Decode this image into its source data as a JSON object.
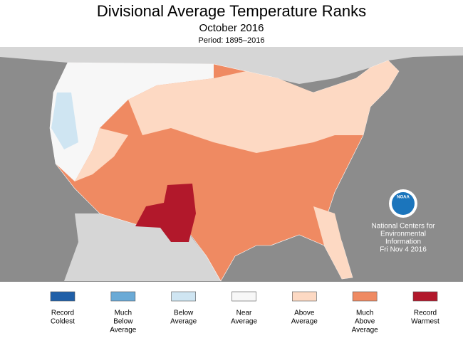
{
  "header": {
    "title": "Divisional Average Temperature Ranks",
    "subtitle": "October 2016",
    "period": "Period: 1895–2016"
  },
  "legend": [
    {
      "lines": [
        "Record",
        "Coldest"
      ],
      "color": "#1f5fa8"
    },
    {
      "lines": [
        "Much",
        "Below",
        "Average"
      ],
      "color": "#6aaad6"
    },
    {
      "lines": [
        "Below",
        "Average"
      ],
      "color": "#cfe5f2"
    },
    {
      "lines": [
        "Near",
        "Average"
      ],
      "color": "#f7f7f7"
    },
    {
      "lines": [
        "Above",
        "Average"
      ],
      "color": "#fdd9c3"
    },
    {
      "lines": [
        "Much",
        "Above",
        "Average"
      ],
      "color": "#ef8a62"
    },
    {
      "lines": [
        "Record",
        "Warmest"
      ],
      "color": "#b2182b"
    }
  ],
  "credit": {
    "logo": "NOAA",
    "lines": [
      "National Centers for",
      "Environmental",
      "Information",
      "Fri Nov  4 2016"
    ]
  }
}
